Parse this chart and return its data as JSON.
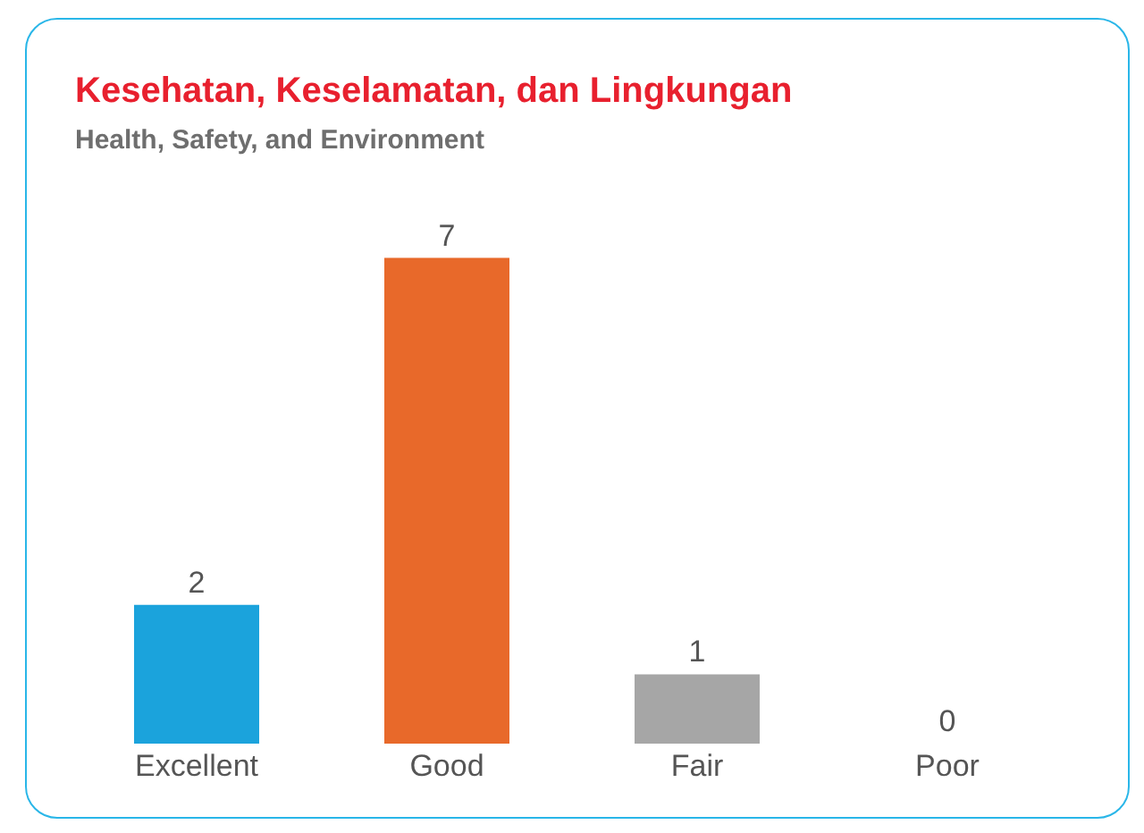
{
  "chart_data": {
    "type": "bar",
    "title": "Kesehatan, Keselamatan, dan Lingkungan",
    "subtitle": "Health, Safety, and Environment",
    "categories": [
      "Excellent",
      "Good",
      "Fair",
      "Poor"
    ],
    "values": [
      2,
      7,
      1,
      0
    ],
    "colors": [
      "#1ba3dc",
      "#e8692a",
      "#a6a6a6",
      "#f2c230"
    ],
    "data_labels": true,
    "grid": false,
    "legend": false
  }
}
